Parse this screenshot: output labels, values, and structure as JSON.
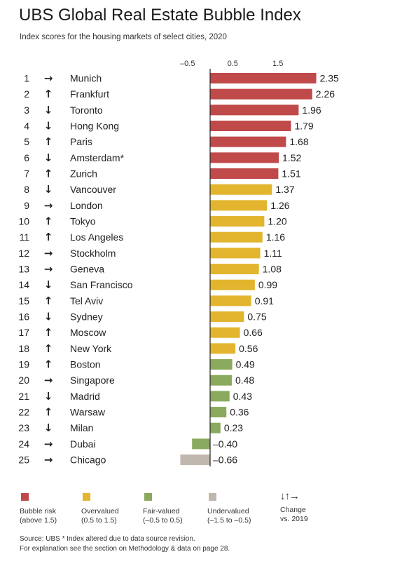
{
  "header": {
    "title": "UBS Global Real Estate Bubble Index",
    "subtitle": "Index scores for the housing markets of select cities, 2020"
  },
  "colors": {
    "bubble": "#c0494a",
    "overvalued": "#e3b52e",
    "fair": "#8aaa5f",
    "undervalued": "#c0b7ae"
  },
  "chart_data": {
    "type": "bar",
    "orientation": "horizontal",
    "title": "UBS Global Real Estate Bubble Index",
    "subtitle": "Index scores for the housing markets of select cities, 2020",
    "x_ticks": [
      "–0.5",
      "0.5",
      "1.5"
    ],
    "x_tick_values": [
      -0.5,
      0.5,
      1.5
    ],
    "xlim": [
      -0.75,
      2.5
    ],
    "rows": [
      {
        "rank": "1",
        "arrow": "→",
        "city": "Munich",
        "value": 2.35,
        "label": "2.35",
        "category": "bubble"
      },
      {
        "rank": "2",
        "arrow": "↑",
        "city": "Frankfurt",
        "value": 2.26,
        "label": "2.26",
        "category": "bubble"
      },
      {
        "rank": "3",
        "arrow": "↓",
        "city": "Toronto",
        "value": 1.96,
        "label": "1.96",
        "category": "bubble"
      },
      {
        "rank": "4",
        "arrow": "↓",
        "city": "Hong Kong",
        "value": 1.79,
        "label": "1.79",
        "category": "bubble"
      },
      {
        "rank": "5",
        "arrow": "↑",
        "city": "Paris",
        "value": 1.68,
        "label": "1.68",
        "category": "bubble"
      },
      {
        "rank": "6",
        "arrow": "↓",
        "city": "Amsterdam*",
        "value": 1.52,
        "label": "1.52",
        "category": "bubble"
      },
      {
        "rank": "7",
        "arrow": "↑",
        "city": "Zurich",
        "value": 1.51,
        "label": "1.51",
        "category": "bubble"
      },
      {
        "rank": "8",
        "arrow": "↓",
        "city": "Vancouver",
        "value": 1.37,
        "label": "1.37",
        "category": "overvalued"
      },
      {
        "rank": "9",
        "arrow": "→",
        "city": "London",
        "value": 1.26,
        "label": "1.26",
        "category": "overvalued"
      },
      {
        "rank": "10",
        "arrow": "↑",
        "city": "Tokyo",
        "value": 1.2,
        "label": "1.20",
        "category": "overvalued"
      },
      {
        "rank": "11",
        "arrow": "↑",
        "city": "Los Angeles",
        "value": 1.16,
        "label": "1.16",
        "category": "overvalued"
      },
      {
        "rank": "12",
        "arrow": "→",
        "city": "Stockholm",
        "value": 1.11,
        "label": "1.11",
        "category": "overvalued"
      },
      {
        "rank": "13",
        "arrow": "→",
        "city": "Geneva",
        "value": 1.08,
        "label": "1.08",
        "category": "overvalued"
      },
      {
        "rank": "14",
        "arrow": "↓",
        "city": "San Francisco",
        "value": 0.99,
        "label": "0.99",
        "category": "overvalued"
      },
      {
        "rank": "15",
        "arrow": "↑",
        "city": "Tel Aviv",
        "value": 0.91,
        "label": "0.91",
        "category": "overvalued"
      },
      {
        "rank": "16",
        "arrow": "↓",
        "city": "Sydney",
        "value": 0.75,
        "label": "0.75",
        "category": "overvalued"
      },
      {
        "rank": "17",
        "arrow": "↑",
        "city": "Moscow",
        "value": 0.66,
        "label": "0.66",
        "category": "overvalued"
      },
      {
        "rank": "18",
        "arrow": "↑",
        "city": "New York",
        "value": 0.56,
        "label": "0.56",
        "category": "overvalued"
      },
      {
        "rank": "19",
        "arrow": "↑",
        "city": "Boston",
        "value": 0.49,
        "label": "0.49",
        "category": "fair"
      },
      {
        "rank": "20",
        "arrow": "→",
        "city": "Singapore",
        "value": 0.48,
        "label": "0.48",
        "category": "fair"
      },
      {
        "rank": "21",
        "arrow": "↓",
        "city": "Madrid",
        "value": 0.43,
        "label": "0.43",
        "category": "fair"
      },
      {
        "rank": "22",
        "arrow": "↑",
        "city": "Warsaw",
        "value": 0.36,
        "label": "0.36",
        "category": "fair"
      },
      {
        "rank": "23",
        "arrow": "↓",
        "city": "Milan",
        "value": 0.23,
        "label": "0.23",
        "category": "fair"
      },
      {
        "rank": "24",
        "arrow": "→",
        "city": "Dubai",
        "value": -0.4,
        "label": "–0.40",
        "category": "fair"
      },
      {
        "rank": "25",
        "arrow": "→",
        "city": "Chicago",
        "value": -0.66,
        "label": "–0.66",
        "category": "undervalued"
      }
    ]
  },
  "legend": {
    "bubble": {
      "label": "Bubble risk",
      "sub": "(above 1.5)"
    },
    "overvalued": {
      "label": "Overvalued",
      "sub": "(0.5 to 1.5)"
    },
    "fair": {
      "label": "Fair-valued",
      "sub": "(–0.5 to 0.5)"
    },
    "undervalued": {
      "label": "Undervalued",
      "sub": "(–1.5 to –0.5)"
    },
    "change": {
      "arrows": "↓↑→",
      "label": "Change",
      "sub": "vs. 2019"
    }
  },
  "footer": {
    "source": "Source: UBS  * Index altered due to data source revision.",
    "note": "For explanation see the section on Methodology & data on page 28."
  }
}
